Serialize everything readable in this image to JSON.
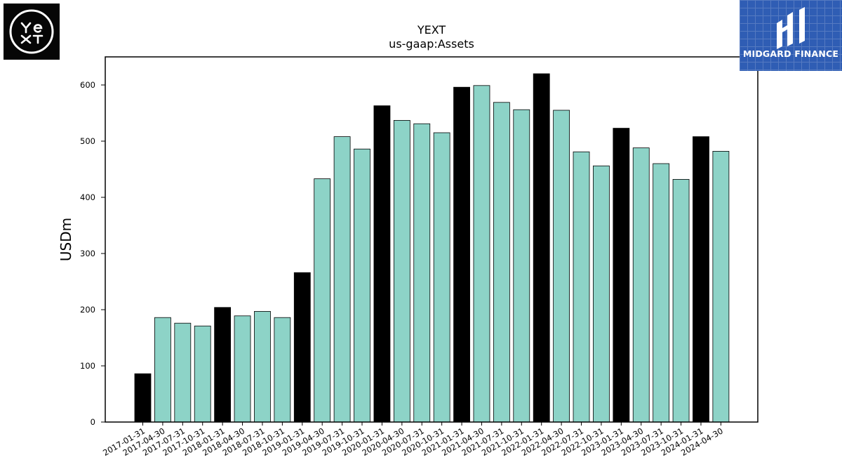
{
  "logos": {
    "left_text": "YEXT",
    "right_text": "MIDGARD FINANCE"
  },
  "chart_data": {
    "type": "bar",
    "title": "YEXT",
    "subtitle": "us-gaap:Assets",
    "xlabel": "",
    "ylabel": "USDm",
    "ylim": [
      0,
      650
    ],
    "yticks": [
      0,
      100,
      200,
      300,
      400,
      500,
      600
    ],
    "grid": false,
    "categories": [
      "2017-01-31",
      "2017-04-30",
      "2017-07-31",
      "2017-10-31",
      "2018-01-31",
      "2018-04-30",
      "2018-07-31",
      "2018-10-31",
      "2019-01-31",
      "2019-04-30",
      "2019-07-31",
      "2019-10-31",
      "2020-01-31",
      "2020-04-30",
      "2020-07-31",
      "2020-10-31",
      "2021-01-31",
      "2021-04-30",
      "2021-07-31",
      "2021-10-31",
      "2022-01-31",
      "2022-04-30",
      "2022-07-31",
      "2022-10-31",
      "2023-01-31",
      "2023-04-30",
      "2023-07-31",
      "2023-10-31",
      "2024-01-31",
      "2024-04-30"
    ],
    "values": [
      86,
      186,
      176,
      171,
      204,
      189,
      197,
      186,
      266,
      433,
      508,
      486,
      563,
      537,
      531,
      515,
      596,
      599,
      569,
      556,
      620,
      555,
      481,
      456,
      523,
      488,
      460,
      432,
      508,
      482
    ],
    "colors": {
      "fiscal_year_end": "#000000",
      "quarter": "#8dd3c7",
      "edge": "#000000"
    }
  }
}
